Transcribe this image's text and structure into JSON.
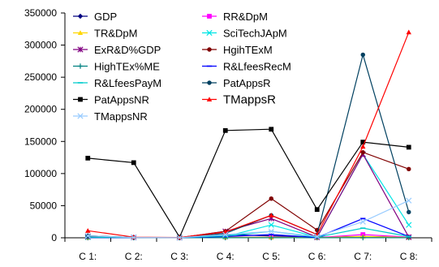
{
  "chart_data": {
    "type": "line",
    "categories": [
      "C 1:",
      "C 2:",
      "C 3:",
      "C 4:",
      "C 5:",
      "C 6:",
      "C 7:",
      "C 8:"
    ],
    "ylim": [
      0,
      350000
    ],
    "yticks": [
      0,
      50000,
      100000,
      150000,
      200000,
      250000,
      300000,
      350000
    ],
    "ytick_labels": [
      "0",
      "50000",
      "100000",
      "150000",
      "200000",
      "250000",
      "300000",
      "350000"
    ],
    "grid": false,
    "legend_position": "top-left inside plot, two columns",
    "series": [
      {
        "name": "GDP",
        "color": "#000080",
        "marker": "diamond",
        "values": [
          3000,
          500,
          300,
          5000,
          3000,
          1000,
          2000,
          1000
        ]
      },
      {
        "name": "RR&DpM",
        "color": "#FF00FF",
        "marker": "square",
        "values": [
          500,
          300,
          200,
          1000,
          1000,
          300,
          5000,
          1000
        ]
      },
      {
        "name": "TR&DpM",
        "color": "#FFD700",
        "marker": "triangle",
        "values": [
          300,
          200,
          100,
          800,
          800,
          200,
          2000,
          500
        ]
      },
      {
        "name": "SciTechJApM",
        "color": "#00E5E5",
        "marker": "x",
        "values": [
          1000,
          500,
          300,
          2000,
          20000,
          1000,
          130000,
          20000
        ]
      },
      {
        "name": "ExR&D%GDP",
        "color": "#800080",
        "marker": "star",
        "values": [
          2000,
          500,
          300,
          10000,
          30000,
          1000,
          130000,
          1000
        ]
      },
      {
        "name": "HgihTExM",
        "color": "#800000",
        "marker": "circle",
        "values": [
          2000,
          500,
          300,
          10000,
          61000,
          12000,
          133000,
          107000
        ]
      },
      {
        "name": "HighTEx%ME",
        "color": "#008080",
        "marker": "plus",
        "values": [
          100,
          100,
          100,
          100,
          100,
          100,
          100,
          100
        ]
      },
      {
        "name": "R&LfeesRecM",
        "color": "#0000FF",
        "marker": "dash",
        "values": [
          500,
          300,
          200,
          2000,
          5000,
          500,
          30000,
          2000
        ]
      },
      {
        "name": "R&LfeesPayM",
        "color": "#00CCCC",
        "marker": "dash",
        "values": [
          1000,
          500,
          300,
          3000,
          10000,
          1000,
          15000,
          2000
        ]
      },
      {
        "name": "PatAppsR",
        "color": "#004060",
        "marker": "circle",
        "values": [
          3000,
          500,
          300,
          7000,
          35000,
          5000,
          285000,
          40000
        ]
      },
      {
        "name": "PatAppsNR",
        "color": "#000000",
        "marker": "square",
        "values": [
          124000,
          117000,
          1000,
          167000,
          169000,
          44000,
          149000,
          141000
        ]
      },
      {
        "name": "TMappsR",
        "color": "#FF0000",
        "marker": "triangle",
        "values": [
          11000,
          1000,
          500,
          9000,
          35000,
          5000,
          142000,
          320000
        ]
      },
      {
        "name": "TMappsNR",
        "color": "#99CCFF",
        "marker": "x",
        "values": [
          3000,
          500,
          300,
          5000,
          10000,
          2000,
          25000,
          58000
        ]
      }
    ]
  }
}
